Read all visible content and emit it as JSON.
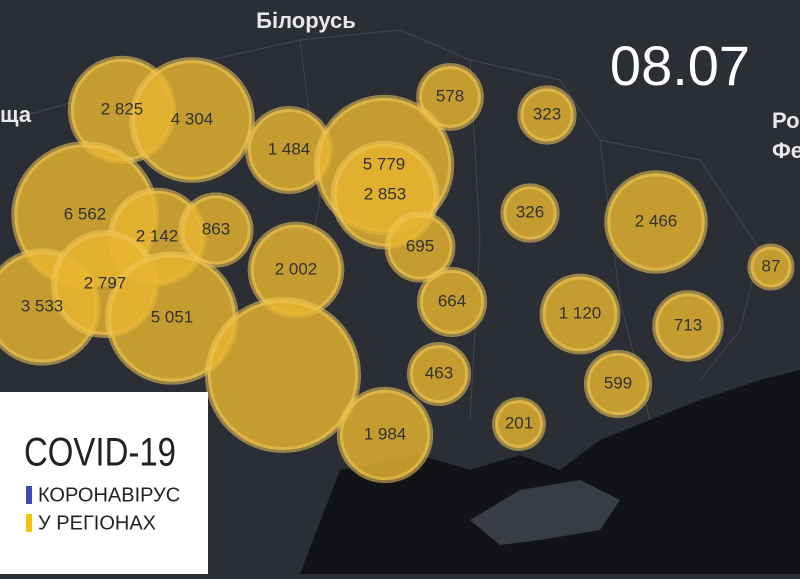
{
  "map_labels": {
    "belarus": "Білорусь",
    "poland": "ща",
    "russia_1": "Ро",
    "russia_2": "Фе"
  },
  "date": "08.07",
  "legend": {
    "title": "COVID-19",
    "line1": "КОРОНАВІРУС",
    "line2": "У РЕГІОНАХ"
  },
  "bubbles": [
    {
      "value": 2825,
      "label": "2 825"
    },
    {
      "value": 4304,
      "label": "4 304"
    },
    {
      "value": 1484,
      "label": "1 484"
    },
    {
      "value": 578,
      "label": "578"
    },
    {
      "value": 323,
      "label": "323"
    },
    {
      "value": 5779,
      "label": "5 779"
    },
    {
      "value": 2853,
      "label": "2 853"
    },
    {
      "value": 6562,
      "label": "6 562"
    },
    {
      "value": 2142,
      "label": "2 142"
    },
    {
      "value": 863,
      "label": "863"
    },
    {
      "value": 326,
      "label": "326"
    },
    {
      "value": 2466,
      "label": "2 466"
    },
    {
      "value": 695,
      "label": "695"
    },
    {
      "value": 2002,
      "label": "2 002"
    },
    {
      "value": 87,
      "label": "87"
    },
    {
      "value": 3533,
      "label": "3 533"
    },
    {
      "value": 2797,
      "label": "2 797"
    },
    {
      "value": 5051,
      "label": "5 051"
    },
    {
      "value": 664,
      "label": "664"
    },
    {
      "value": 1120,
      "label": "1 120"
    },
    {
      "value": 713,
      "label": "713"
    },
    {
      "value": 7600
    },
    {
      "value": 463,
      "label": "463"
    },
    {
      "value": 599,
      "label": "599"
    },
    {
      "value": 201,
      "label": "201"
    },
    {
      "value": 1984,
      "label": "1 984"
    }
  ]
}
